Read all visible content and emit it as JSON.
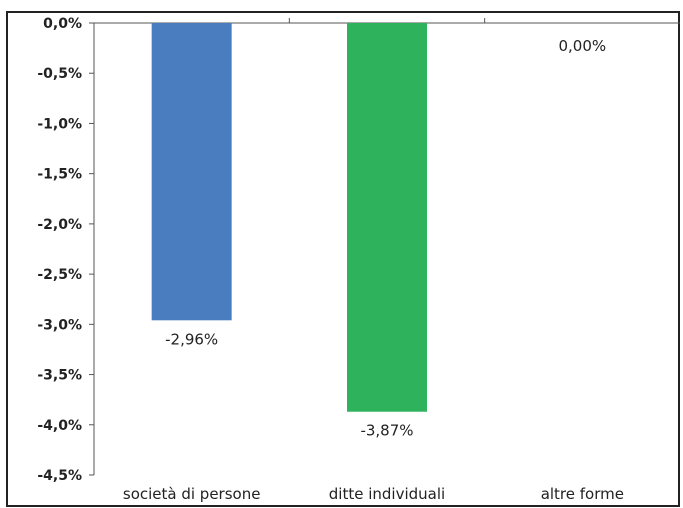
{
  "chart_data": {
    "type": "bar",
    "title": "",
    "xlabel": "",
    "ylabel": "",
    "categories": [
      "società di persone",
      "ditte individuali",
      "altre forme"
    ],
    "values": [
      -2.96,
      -3.87,
      0.0
    ],
    "value_labels": [
      "-2,96%",
      "-3,87%",
      "0,00%"
    ],
    "bar_colors": [
      "#4a7dc0",
      "#2eb35c",
      "#cccccc"
    ],
    "ylim": [
      -4.5,
      0.0
    ],
    "yticks": [
      0.0,
      -0.5,
      -1.0,
      -1.5,
      -2.0,
      -2.5,
      -3.0,
      -3.5,
      -4.0,
      -4.5
    ],
    "ytick_labels": [
      "0,0%",
      "-0,5%",
      "-1,0%",
      "-1,5%",
      "-2,0%",
      "-2,5%",
      "-3,0%",
      "-3,5%",
      "-4,0%",
      "-4,5%"
    ],
    "grid": false,
    "legend": "none"
  }
}
